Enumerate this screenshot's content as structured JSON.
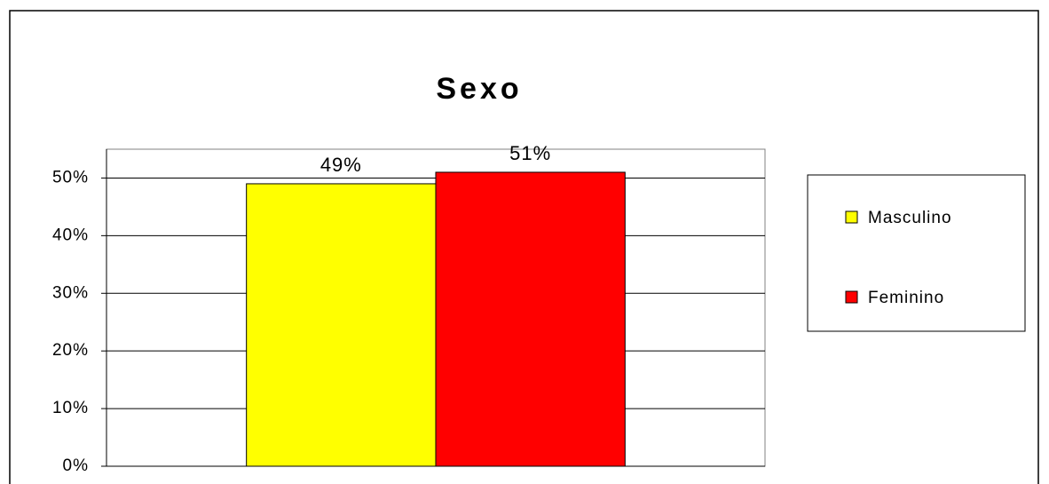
{
  "chart_data": {
    "type": "bar",
    "title": "Sexo",
    "categories": [
      null
    ],
    "series": [
      {
        "name": "Masculino",
        "color": "#ffff00",
        "values": [
          49
        ],
        "value_labels": [
          "49%"
        ]
      },
      {
        "name": "Feminino",
        "color": "#ff0000",
        "values": [
          51
        ],
        "value_labels": [
          "51%"
        ]
      }
    ],
    "ylim": [
      0,
      55
    ],
    "yticks": [
      {
        "value": 0,
        "label": "0%"
      },
      {
        "value": 10,
        "label": "10%"
      },
      {
        "value": 20,
        "label": "20%"
      },
      {
        "value": 30,
        "label": "30%"
      },
      {
        "value": 40,
        "label": "40%"
      },
      {
        "value": 50,
        "label": "50%"
      }
    ],
    "grid": true,
    "legend": "right"
  }
}
